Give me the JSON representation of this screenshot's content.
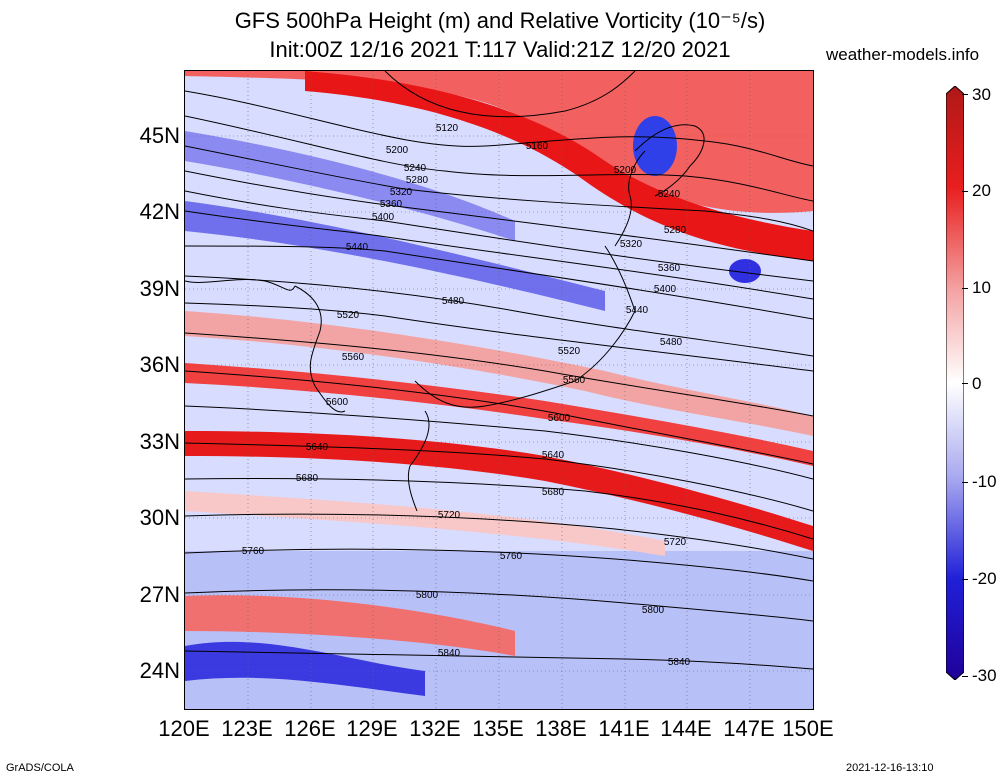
{
  "title": {
    "line1": "GFS 500hPa Height (m) and Relative Vorticity (10⁻⁵/s)",
    "line2": "Init:00Z 12/16 2021 T:117 Valid:21Z 12/20 2021"
  },
  "site": "weather-models.info",
  "footer": {
    "left": "GrADS/COLA",
    "right": "2021-12-16-13:10"
  },
  "map": {
    "lat_labels": [
      "45N",
      "42N",
      "39N",
      "36N",
      "33N",
      "30N",
      "27N",
      "24N"
    ],
    "lon_labels": [
      "120E",
      "123E",
      "126E",
      "129E",
      "132E",
      "135E",
      "138E",
      "141E",
      "144E",
      "147E",
      "150E"
    ],
    "contour_labels": [
      "5120",
      "5160",
      "5200",
      "5200",
      "5240",
      "5240",
      "5280",
      "5280",
      "5320",
      "5320",
      "5360",
      "5360",
      "5400",
      "5400",
      "5440",
      "5440",
      "5480",
      "5480",
      "5520",
      "5520",
      "5560",
      "5560",
      "5600",
      "5600",
      "5640",
      "5640",
      "5680",
      "5680",
      "5720",
      "5720",
      "5760",
      "5760",
      "5800",
      "5800",
      "5840",
      "5840"
    ],
    "colors": {
      "positive": "#e8150f",
      "negative": "#3838e0",
      "contour": "#000000"
    }
  },
  "colorbar": {
    "labels": [
      "30",
      "20",
      "10",
      "0",
      "-10",
      "-20",
      "-30"
    ],
    "stops": [
      "#b01818",
      "#e81e1e",
      "#f4a0a0",
      "#ffffff",
      "#a8a8f0",
      "#2020d8",
      "#200098"
    ]
  }
}
